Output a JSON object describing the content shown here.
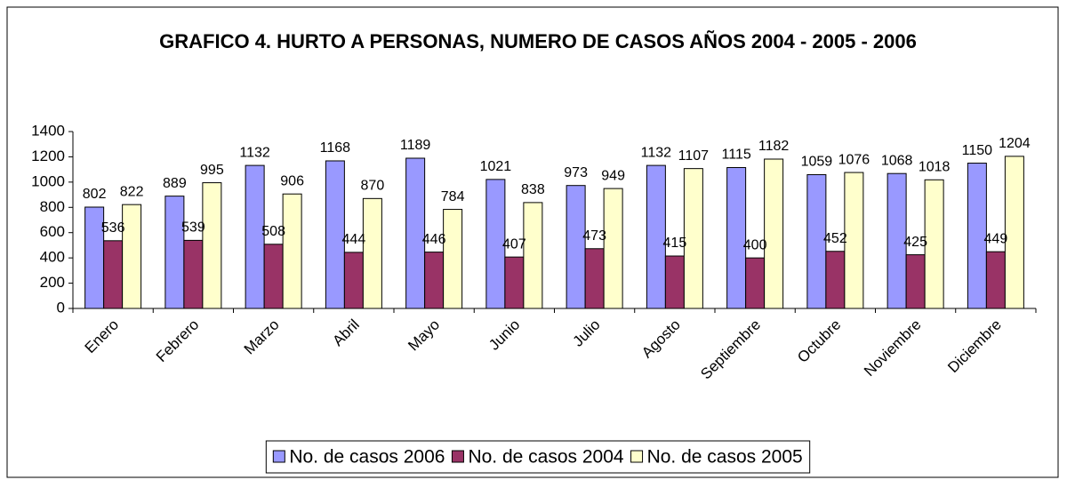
{
  "chart_data": {
    "type": "bar",
    "title": "GRAFICO 4. HURTO A PERSONAS, NUMERO DE CASOS AÑOS 2004 - 2005 - 2006",
    "categories": [
      "Enero",
      "Febrero",
      "Marzo",
      "Abril",
      "Mayo",
      "Junio",
      "Julio",
      "Agosto",
      "Septiembre",
      "Octubre",
      "Noviembre",
      "Diciembre"
    ],
    "series": [
      {
        "name": "No. de casos 2006",
        "color": "#9999ff",
        "values": [
          802,
          889,
          1132,
          1168,
          1189,
          1021,
          973,
          1132,
          1115,
          1059,
          1068,
          1150
        ]
      },
      {
        "name": "No. de casos 2004",
        "color": "#993366",
        "values": [
          536,
          539,
          508,
          444,
          446,
          407,
          473,
          415,
          400,
          452,
          425,
          449
        ]
      },
      {
        "name": "No. de casos 2005",
        "color": "#ffffcc",
        "values": [
          822,
          995,
          906,
          870,
          784,
          838,
          949,
          1107,
          1182,
          1076,
          1018,
          1204
        ]
      }
    ],
    "ylim": [
      0,
      1400
    ],
    "yticks": [
      0,
      200,
      400,
      600,
      800,
      1000,
      1200,
      1400
    ],
    "grid": false,
    "legend": "bottom"
  }
}
